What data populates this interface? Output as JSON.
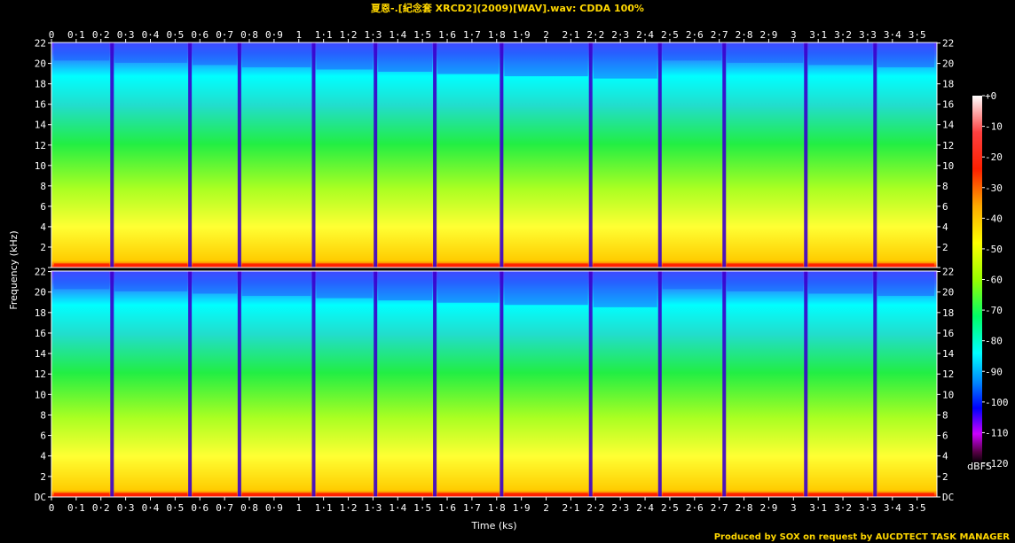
{
  "title": "夏恩-.[紀念套 XRCD2](2009)[WAV].wav: CDDA 100%",
  "credit": "Produced by SOX on request by AUCDTECT TASK MANAGER",
  "chart_data": {
    "type": "heatmap",
    "xlabel": "Time (ks)",
    "ylabel": "Frequency (kHz)",
    "xlim": [
      0,
      3.58
    ],
    "ylim": [
      0,
      22.05
    ],
    "x_ticks": [
      "0",
      "0·1",
      "0·2",
      "0·3",
      "0·4",
      "0·5",
      "0·6",
      "0·7",
      "0·8",
      "0·9",
      "1",
      "1·1",
      "1·2",
      "1·3",
      "1·4",
      "1·5",
      "1·6",
      "1·7",
      "1·8",
      "1·9",
      "2",
      "2·1",
      "2·2",
      "2·3",
      "2·4",
      "2·5",
      "2·6",
      "2·7",
      "2·8",
      "2·9",
      "3",
      "3·1",
      "3·2",
      "3·3",
      "3·4",
      "3·5"
    ],
    "y_ticks": [
      "DC",
      "2",
      "4",
      "6",
      "8",
      "10",
      "12",
      "14",
      "16",
      "18",
      "20",
      "22"
    ],
    "channels": 2,
    "track_boundaries_ks": [
      0.245,
      0.56,
      0.76,
      1.06,
      1.31,
      1.55,
      1.82,
      2.18,
      2.46,
      2.72,
      3.05,
      3.33,
      3.58
    ],
    "colorbar": {
      "label": "dBFS",
      "ticks": [
        "+0",
        "-10",
        "-20",
        "-30",
        "-40",
        "-50",
        "-60",
        "-70",
        "-80",
        "-90",
        "-100",
        "-110",
        "-120"
      ],
      "range": [
        -120,
        0
      ],
      "colors": [
        "#ffffff",
        "#ffc0c0",
        "#ff0000",
        "#ff9900",
        "#ffff00",
        "#99ff00",
        "#00ff00",
        "#00ffff",
        "#0066ff",
        "#0000ff",
        "#9900ff",
        "#ff00ff",
        "#550033",
        "#000000"
      ]
    },
    "grid": false
  }
}
